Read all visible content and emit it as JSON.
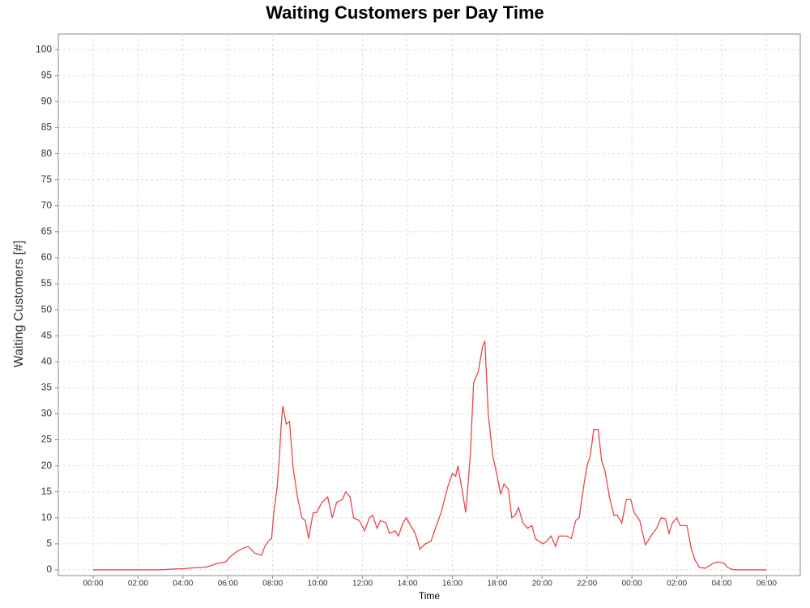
{
  "chart_data": {
    "type": "line",
    "title": "Waiting Customers per Day Time",
    "x_label": "Time",
    "y_label": "Waiting Customers [#]",
    "x": [
      0,
      1,
      2,
      3,
      3.75,
      4.0,
      4.5,
      5.0,
      5.25,
      5.5,
      5.9,
      6.1,
      6.4,
      6.7,
      6.9,
      7.2,
      7.35,
      7.5,
      7.65,
      7.8,
      7.95,
      8.05,
      8.2,
      8.3,
      8.38,
      8.45,
      8.6,
      8.75,
      8.9,
      9.1,
      9.3,
      9.45,
      9.6,
      9.8,
      9.95,
      10.2,
      10.45,
      10.65,
      10.85,
      11.1,
      11.25,
      11.45,
      11.6,
      11.85,
      12.1,
      12.3,
      12.45,
      12.65,
      12.8,
      13.05,
      13.2,
      13.45,
      13.6,
      13.8,
      13.95,
      14.15,
      14.35,
      14.55,
      14.8,
      15.05,
      15.25,
      15.5,
      15.8,
      16.0,
      16.15,
      16.25,
      16.45,
      16.6,
      16.8,
      16.95,
      17.15,
      17.35,
      17.45,
      17.6,
      17.8,
      18.0,
      18.15,
      18.3,
      18.5,
      18.65,
      18.8,
      18.95,
      19.15,
      19.35,
      19.55,
      19.7,
      19.85,
      20.05,
      20.2,
      20.4,
      20.6,
      20.75,
      20.95,
      21.1,
      21.3,
      21.5,
      21.65,
      21.85,
      22.0,
      22.15,
      22.3,
      22.5,
      22.65,
      22.8,
      23.0,
      23.2,
      23.35,
      23.55,
      23.75,
      23.95,
      24.1,
      24.35,
      24.6,
      24.85,
      25.1,
      25.3,
      25.5,
      25.65,
      25.8,
      26.0,
      26.15,
      26.35,
      26.45,
      26.65,
      26.8,
      27.0,
      27.25,
      27.45,
      27.6,
      27.8,
      28.1,
      28.25,
      28.45,
      28.6,
      29.0,
      30.0
    ],
    "series": [
      {
        "name": "Waiting Customers",
        "color": "#e8474a",
        "values": [
          0,
          0,
          0,
          0,
          0.2,
          0.2,
          0.4,
          0.5,
          0.8,
          1.2,
          1.5,
          2.5,
          3.5,
          4.2,
          4.5,
          3.2,
          3.0,
          2.8,
          4.5,
          5.5,
          6,
          11,
          16,
          22,
          28,
          31.5,
          28,
          28.5,
          20,
          14,
          10,
          9.5,
          6,
          11,
          11,
          13,
          14,
          10,
          13,
          13.5,
          15,
          14,
          10,
          9.5,
          7.5,
          10,
          10.5,
          8,
          9.5,
          9,
          7,
          7.5,
          6.5,
          9,
          10,
          8.5,
          7,
          4,
          5,
          5.5,
          8,
          11,
          16,
          18.5,
          18,
          20,
          15,
          11,
          22,
          36,
          38,
          43,
          44,
          30,
          22,
          18,
          14.5,
          16.5,
          15.5,
          10,
          10.5,
          12,
          9,
          8,
          8.5,
          6,
          5.5,
          5,
          5.5,
          6.5,
          4.5,
          6.5,
          6.5,
          6.5,
          6,
          9.5,
          10,
          16,
          20,
          22,
          27,
          27,
          21,
          19,
          14,
          10.5,
          10.5,
          9,
          13.5,
          13.5,
          11,
          9.5,
          4.8,
          6.5,
          8,
          10,
          9.8,
          7,
          9,
          10,
          8.5,
          8.5,
          8.5,
          4,
          2,
          0.5,
          0.3,
          0.8,
          1.2,
          1.5,
          1.3,
          0.5,
          0.1,
          0,
          0,
          0
        ]
      }
    ],
    "xlim": [
      -1.55,
      31.5
    ],
    "ylim": [
      -1.1,
      103
    ],
    "xticks": [
      {
        "value": 0,
        "label": "00:00"
      },
      {
        "value": 2,
        "label": "02:00"
      },
      {
        "value": 4,
        "label": "04:00"
      },
      {
        "value": 6,
        "label": "06:00"
      },
      {
        "value": 8,
        "label": "08:00"
      },
      {
        "value": 10,
        "label": "10:00"
      },
      {
        "value": 12,
        "label": "12:00"
      },
      {
        "value": 14,
        "label": "14:00"
      },
      {
        "value": 16,
        "label": "16:00"
      },
      {
        "value": 18,
        "label": "18:00"
      },
      {
        "value": 20,
        "label": "20:00"
      },
      {
        "value": 22,
        "label": "22:00"
      },
      {
        "value": 24,
        "label": "00:00"
      },
      {
        "value": 26,
        "label": "02:00"
      },
      {
        "value": 28,
        "label": "04:00"
      },
      {
        "value": 30,
        "label": "06:00"
      }
    ],
    "yticks": [
      0,
      5,
      10,
      15,
      20,
      25,
      30,
      35,
      40,
      45,
      50,
      55,
      60,
      65,
      70,
      75,
      80,
      85,
      90,
      95,
      100
    ],
    "grid": true
  }
}
